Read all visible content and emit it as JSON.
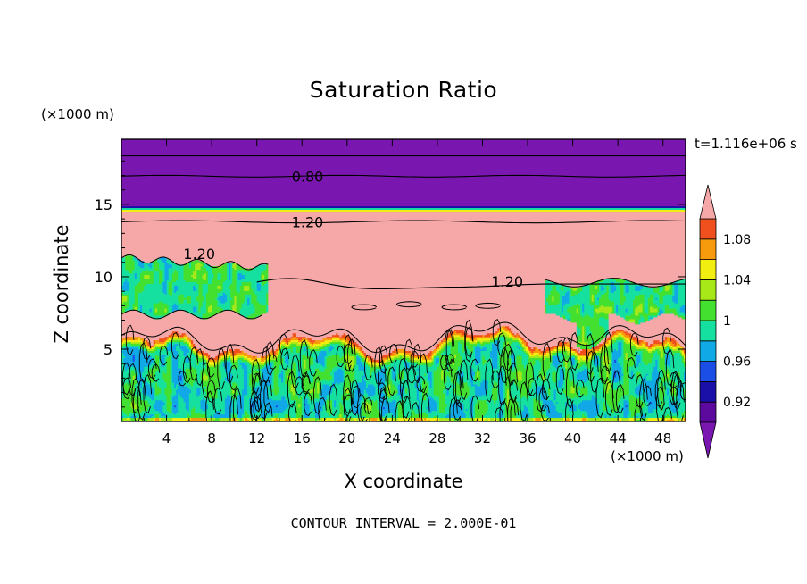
{
  "chart_data": {
    "type": "heatmap",
    "title": "Saturation Ratio",
    "xlabel": "X coordinate",
    "ylabel": "Z coordinate",
    "x_unit": "(×1000 m)",
    "z_unit": "(×1000 m)",
    "time_label": "t=1.116e+06 s",
    "contour_interval_label": "CONTOUR INTERVAL = 2.000E-01",
    "xlim": [
      0,
      50
    ],
    "ylim": [
      0,
      19.5
    ],
    "x_ticks": [
      4,
      8,
      12,
      16,
      20,
      24,
      28,
      32,
      36,
      40,
      44,
      48
    ],
    "y_ticks": [
      5,
      10,
      15
    ],
    "colorbar": {
      "levels": [
        0.9,
        0.92,
        0.94,
        0.96,
        0.98,
        1.0,
        1.02,
        1.04,
        1.06,
        1.08,
        1.1
      ],
      "tick_labels": [
        "0.92",
        "0.96",
        "1",
        "1.04",
        "1.08"
      ],
      "tick_values": [
        0.92,
        0.96,
        1.0,
        1.04,
        1.08
      ],
      "colors": [
        "#5c0a9e",
        "#1a10a8",
        "#1a4ee6",
        "#11a8e6",
        "#16e0a0",
        "#44e030",
        "#a8e818",
        "#f2ee10",
        "#f79a0c",
        "#f0501e"
      ],
      "below_color": "#7a17b0",
      "above_color": "#f6a8a8"
    },
    "contour_labels": [
      {
        "text": "0.80",
        "x": 16.5,
        "z": 16.95
      },
      {
        "text": "1.20",
        "x": 16.5,
        "z": 13.8
      },
      {
        "text": "1.20",
        "x": 6.9,
        "z": 11.6
      },
      {
        "text": "1.20",
        "x": 34.2,
        "z": 9.7
      }
    ]
  }
}
